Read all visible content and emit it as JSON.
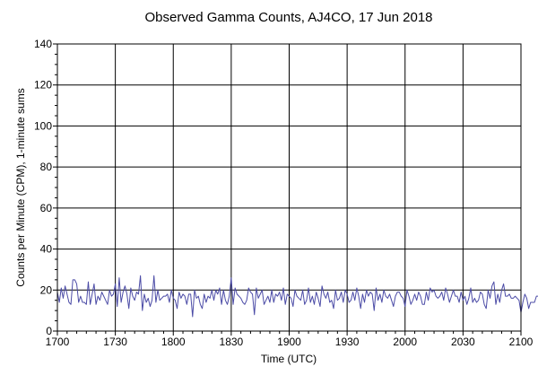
{
  "chart_data": {
    "type": "line",
    "title": "Observed Gamma Counts, AJ4CO, 17 Jun 2018",
    "xlabel": "Time (UTC)",
    "ylabel": "Counts per Minute (CPM), 1-minute sums",
    "x_tick_labels": [
      "1700",
      "1730",
      "1800",
      "1830",
      "1900",
      "1930",
      "2000",
      "2030",
      "2100"
    ],
    "y_ticks": [
      0,
      20,
      40,
      60,
      80,
      100,
      120,
      140
    ],
    "xlim": [
      "17:00",
      "21:00"
    ],
    "ylim": [
      0,
      140
    ],
    "grid": true,
    "legend": "none",
    "colors": {
      "line": "#4b4ba6",
      "grid": "#000000",
      "background": "#ffffff"
    },
    "series": [
      {
        "x_start": "17:00",
        "x_step_minutes": 1,
        "values": [
          19,
          14,
          21,
          16,
          22,
          18,
          14,
          13,
          25,
          25,
          23,
          14,
          17,
          14,
          14,
          13,
          24,
          13,
          18,
          23,
          13,
          17,
          15,
          19,
          17,
          15,
          13,
          20,
          17,
          18,
          23,
          12,
          26,
          14,
          19,
          22,
          18,
          11,
          21,
          17,
          15,
          19,
          18,
          27,
          10,
          18,
          14,
          16,
          12,
          15,
          27,
          14,
          20,
          15,
          16,
          17,
          17,
          18,
          14,
          20,
          16,
          15,
          11,
          19,
          16,
          18,
          17,
          13,
          18,
          18,
          7,
          20,
          16,
          17,
          13,
          11,
          18,
          14,
          17,
          16,
          20,
          15,
          20,
          18,
          21,
          13,
          20,
          15,
          13,
          17,
          26,
          13,
          21,
          18,
          17,
          16,
          14,
          13,
          15,
          21,
          19,
          18,
          8,
          21,
          16,
          18,
          20,
          13,
          15,
          17,
          14,
          20,
          14,
          18,
          17,
          19,
          15,
          21,
          13,
          18,
          17,
          16,
          12,
          20,
          17,
          16,
          15,
          20,
          13,
          15,
          21,
          14,
          17,
          13,
          19,
          16,
          12,
          22,
          18,
          16,
          19,
          14,
          15,
          11,
          20,
          15,
          16,
          19,
          14,
          20,
          18,
          14,
          15,
          19,
          15,
          21,
          17,
          11,
          18,
          14,
          20,
          17,
          19,
          18,
          10,
          21,
          15,
          18,
          14,
          20,
          17,
          16,
          18,
          15,
          12,
          17,
          19,
          19,
          17,
          16,
          12,
          20,
          17,
          13,
          15,
          18,
          15,
          19,
          17,
          13,
          13,
          19,
          15,
          21,
          19,
          20,
          17,
          16,
          17,
          19,
          15,
          21,
          18,
          14,
          17,
          20,
          17,
          17,
          14,
          19,
          15,
          17,
          13,
          16,
          21,
          14,
          16,
          14,
          15,
          19,
          18,
          13,
          11,
          20,
          16,
          22,
          24,
          13,
          18,
          14,
          20,
          23,
          17,
          17,
          18,
          16,
          16,
          17,
          16,
          15,
          9,
          14,
          18,
          16,
          11,
          14,
          14,
          14,
          17,
          17,
          12,
          15,
          13,
          21,
          17,
          15,
          19,
          17,
          15,
          15,
          18,
          12,
          20,
          14,
          17,
          16,
          20,
          15,
          20,
          18,
          13,
          16,
          18,
          15,
          16,
          17,
          14,
          10,
          16,
          17,
          20,
          20,
          14,
          15,
          17,
          15,
          19,
          17,
          13,
          19,
          17,
          15,
          16,
          18,
          17,
          16,
          14,
          21,
          12,
          17,
          16,
          13,
          20,
          16,
          24,
          25,
          22,
          18,
          16,
          16,
          18,
          17,
          15,
          17,
          16,
          18,
          17,
          10,
          11,
          16,
          16,
          13,
          15,
          17,
          13,
          15,
          13,
          13,
          16,
          16,
          19,
          12,
          14,
          14,
          15,
          15,
          16,
          15,
          16,
          17,
          16,
          12,
          12,
          17,
          15,
          14,
          16,
          18,
          13,
          15,
          16,
          15,
          20,
          17,
          18,
          16,
          19,
          11,
          15,
          20,
          13,
          18,
          22,
          21,
          20,
          9,
          16,
          12,
          15,
          20,
          17,
          18,
          19,
          16,
          17,
          11,
          18,
          19,
          28,
          18,
          12,
          18,
          16,
          18,
          14,
          21,
          17,
          20,
          18,
          14,
          16,
          21,
          13,
          19,
          23,
          16,
          19,
          17,
          20,
          16,
          15,
          11,
          18,
          14,
          19,
          13,
          17,
          19,
          16,
          20,
          11,
          15,
          7,
          17
        ]
      }
    ]
  }
}
